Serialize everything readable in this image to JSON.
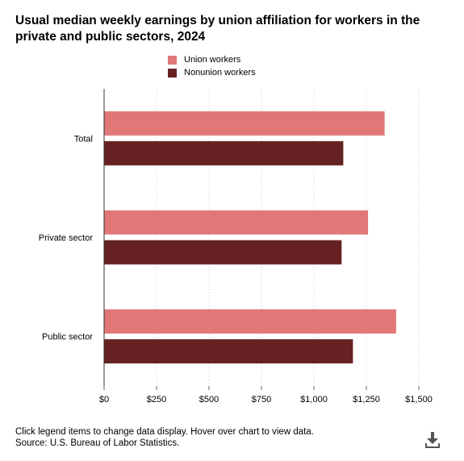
{
  "title": "Usual median weekly earnings by union affiliation for workers in the private and public sectors, 2024",
  "legend": {
    "items": [
      {
        "label": "Union workers",
        "color": "#e07878"
      },
      {
        "label": "Nonunion workers",
        "color": "#662222"
      }
    ]
  },
  "footer": {
    "note": "Click legend items to change data display. Hover over chart to view data.",
    "source": "Source: U.S. Bureau of Labor Statistics."
  },
  "icons": {
    "download": "download-icon"
  },
  "chart_data": {
    "type": "bar",
    "orientation": "horizontal",
    "categories": [
      "Total",
      "Private sector",
      "Public sector"
    ],
    "series": [
      {
        "name": "Union workers",
        "color": "#e07878",
        "values": [
          1337,
          1258,
          1392
        ]
      },
      {
        "name": "Nonunion workers",
        "color": "#662222",
        "values": [
          1140,
          1132,
          1186
        ]
      }
    ],
    "xlim": [
      0,
      1500
    ],
    "xticks": [
      0,
      250,
      500,
      750,
      1000,
      1250,
      1500
    ],
    "xtick_labels": [
      "$0",
      "$250",
      "$500",
      "$750",
      "$1,000",
      "$1,250",
      "$1,500"
    ],
    "grid": "vertical dotted",
    "legend_position": "top-center"
  }
}
